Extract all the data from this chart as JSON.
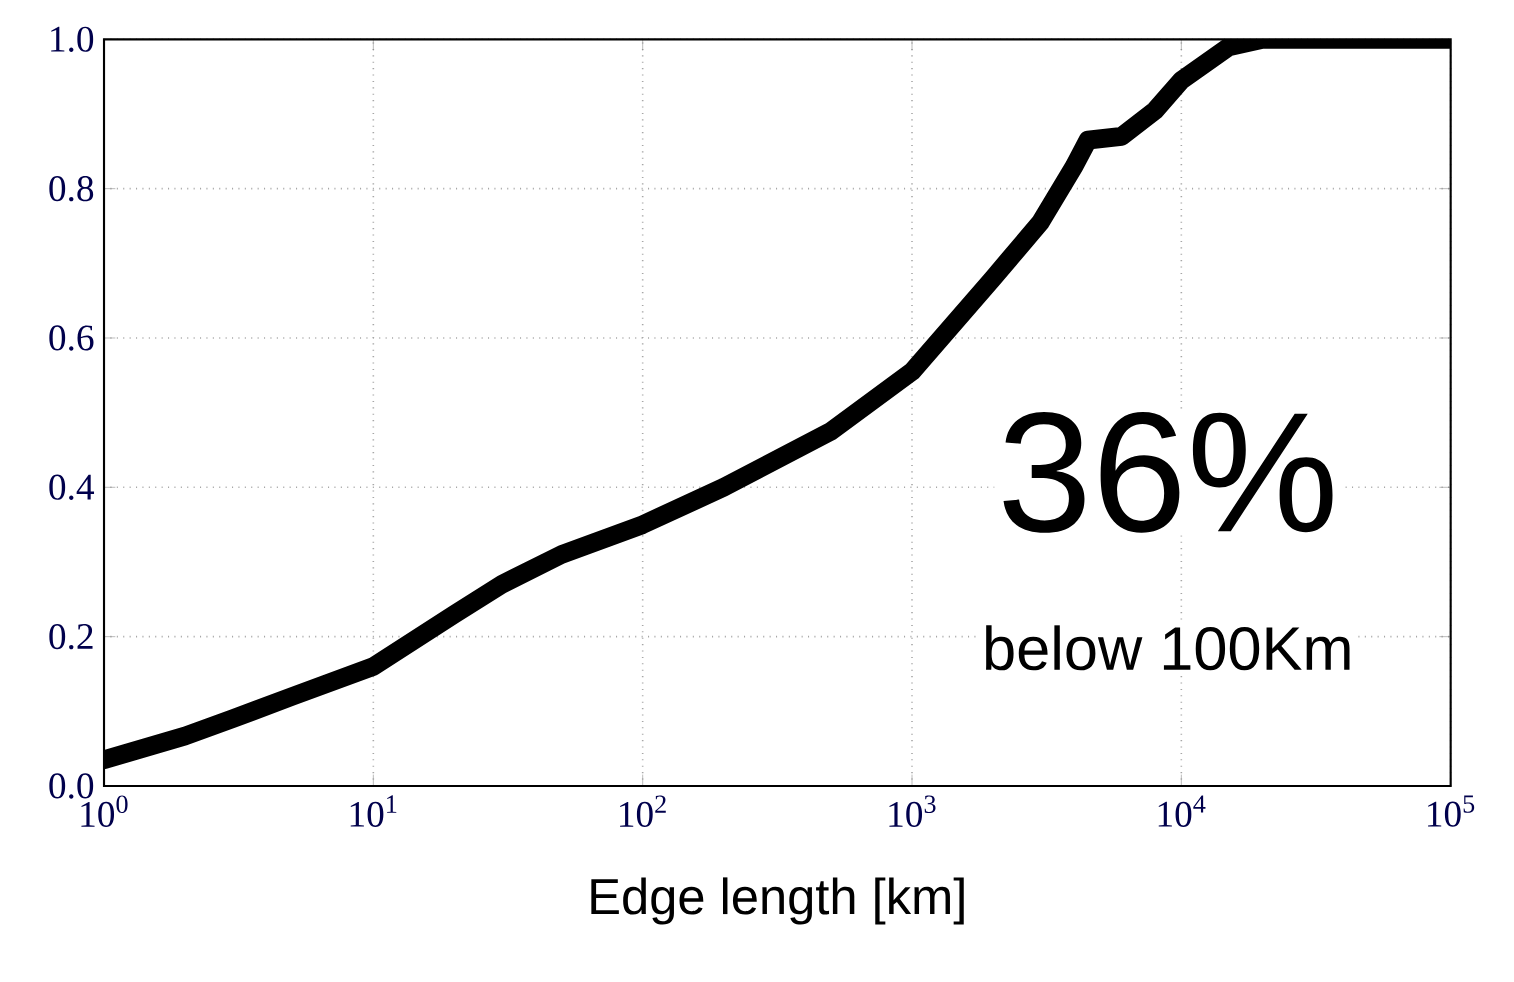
{
  "chart_data": {
    "type": "line",
    "xlabel": "Edge length [km]",
    "x": [
      1,
      2,
      3,
      5,
      10,
      20,
      30,
      50,
      100,
      200,
      500,
      1000,
      2000,
      3000,
      4000,
      4500,
      6000,
      8000,
      10000,
      15000,
      20000,
      100000
    ],
    "series": [
      {
        "color": "#000000",
        "values": [
          0.035,
          0.067,
          0.09,
          0.12,
          0.16,
          0.23,
          0.27,
          0.31,
          0.35,
          0.4,
          0.475,
          0.555,
          0.68,
          0.755,
          0.83,
          0.865,
          0.87,
          0.905,
          0.945,
          0.99,
          1.0,
          1.0
        ]
      }
    ],
    "xlim": [
      1,
      100000
    ],
    "ylim": [
      0,
      1
    ],
    "xticks": [
      {
        "value": 1,
        "label": "10$^{0}$"
      },
      {
        "value": 10,
        "label": "10$^{1}$"
      },
      {
        "value": 100,
        "label": "10$^{2}$"
      },
      {
        "value": 1000,
        "label": "10$^{3}$"
      },
      {
        "value": 10000,
        "label": "10$^{4}$"
      },
      {
        "value": 100000,
        "label": "10$^{5}$"
      }
    ],
    "yticks": [
      {
        "value": 0,
        "label": "0.0"
      },
      {
        "value": 0.2,
        "label": "0.2"
      },
      {
        "value": 0.4,
        "label": "0.4"
      },
      {
        "value": 0.6,
        "label": "0.6"
      },
      {
        "value": 0.8,
        "label": "0.8"
      },
      {
        "value": 1.0,
        "label": "1.0"
      }
    ],
    "log": "x",
    "grid": true,
    "line_style": "solid",
    "annotations": [
      "36%",
      "below 100Km"
    ]
  }
}
